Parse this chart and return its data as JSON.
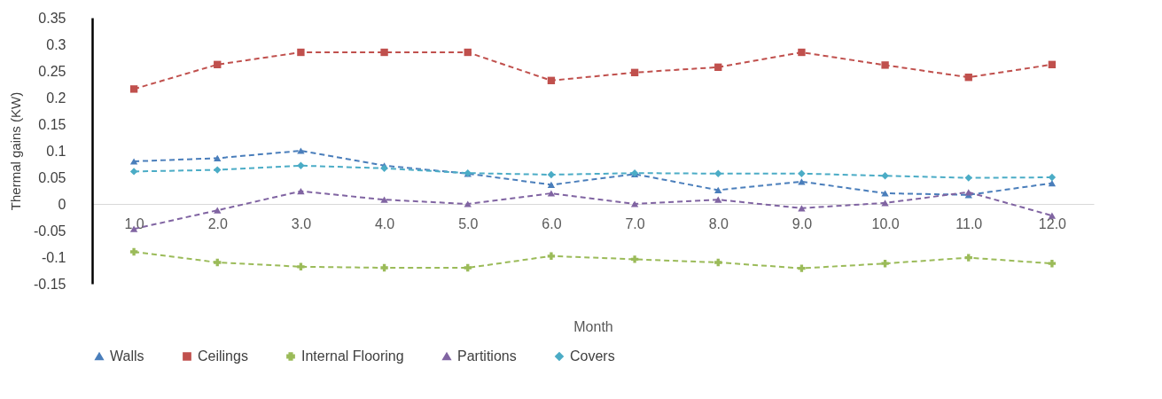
{
  "chart_data": {
    "type": "line",
    "xlabel": "Month",
    "ylabel": "Thermal gains  (KW)",
    "x": [
      1,
      2,
      3,
      4,
      5,
      6,
      7,
      8,
      9,
      10,
      11,
      12
    ],
    "xlim": [
      0.5,
      12.5
    ],
    "xticks": [
      {
        "value": 1,
        "label": "1.0"
      },
      {
        "value": 2,
        "label": "2.0"
      },
      {
        "value": 3,
        "label": "3.0"
      },
      {
        "value": 4,
        "label": "4.0"
      },
      {
        "value": 5,
        "label": "5.0"
      },
      {
        "value": 6,
        "label": "6.0"
      },
      {
        "value": 7,
        "label": "7.0"
      },
      {
        "value": 8,
        "label": "8.0"
      },
      {
        "value": 9,
        "label": "9.0"
      },
      {
        "value": 10,
        "label": "10.0"
      },
      {
        "value": 11,
        "label": "11.0"
      },
      {
        "value": 12,
        "label": "12.0"
      }
    ],
    "ylim": [
      -0.15,
      0.35
    ],
    "yticks": [
      -0.15,
      -0.1,
      -0.05,
      0,
      0.05,
      0.1,
      0.15,
      0.2,
      0.25,
      0.3,
      0.35
    ],
    "grid": false,
    "legend": "bottom",
    "line_style": "dashed",
    "series": [
      {
        "name": "Walls",
        "color": "#4a7ebb",
        "marker": "triangle",
        "values": [
          0.08,
          0.086,
          0.1,
          0.072,
          0.057,
          0.036,
          0.056,
          0.026,
          0.042,
          0.02,
          0.017,
          0.039
        ]
      },
      {
        "name": "Ceilings",
        "color": "#c0504d",
        "marker": "square",
        "values": [
          0.216,
          0.262,
          0.285,
          0.285,
          0.285,
          0.232,
          0.247,
          0.257,
          0.285,
          0.261,
          0.238,
          0.262
        ]
      },
      {
        "name": "Internal Flooring",
        "color": "#9bbb59",
        "marker": "cross",
        "values": [
          -0.09,
          -0.11,
          -0.118,
          -0.12,
          -0.12,
          -0.098,
          -0.104,
          -0.11,
          -0.121,
          -0.112,
          -0.101,
          -0.112
        ]
      },
      {
        "name": "Partitions",
        "color": "#8064a2",
        "marker": "triangle",
        "values": [
          -0.047,
          -0.012,
          0.024,
          0.008,
          0.0,
          0.02,
          0.0,
          0.008,
          -0.008,
          0.002,
          0.022,
          -0.022
        ]
      },
      {
        "name": "Covers",
        "color": "#4bacc6",
        "marker": "diamond",
        "values": [
          0.061,
          0.064,
          0.072,
          0.067,
          0.058,
          0.055,
          0.058,
          0.057,
          0.057,
          0.053,
          0.049,
          0.05
        ]
      }
    ]
  }
}
